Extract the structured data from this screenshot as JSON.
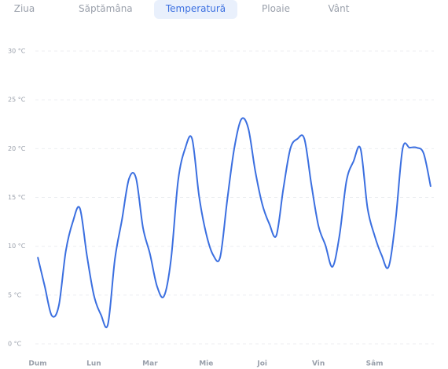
{
  "tabs": [
    "Ziua",
    "Săptămâna",
    "Temperatură",
    "Ploaie",
    "Vânt"
  ],
  "chart_data": {
    "type": "line",
    "x": [
      0,
      3,
      6,
      9,
      12,
      15,
      18,
      21,
      24,
      27,
      30,
      33,
      36,
      39,
      42,
      45,
      48,
      51,
      54,
      57,
      60,
      63,
      66,
      69,
      72,
      75,
      78,
      81,
      84,
      87,
      90,
      93,
      96,
      99,
      102,
      105,
      108,
      111,
      114,
      117,
      120,
      123,
      126,
      129,
      132,
      135,
      138,
      141,
      144,
      147,
      150,
      153,
      156,
      159,
      162,
      165,
      168
    ],
    "series": [
      {
        "name": "Temperatură",
        "color": "#3b6fe0",
        "values": [
          8.9,
          5.9,
          2.9,
          3.9,
          9.5,
          12.5,
          13.9,
          9.1,
          5,
          3,
          2,
          8.7,
          12.7,
          16.9,
          17,
          11.9,
          9.2,
          5.9,
          4.9,
          8.7,
          16.7,
          20,
          21,
          15.1,
          11.3,
          9.1,
          8.9,
          14.7,
          20,
          23,
          22.1,
          17.7,
          14.3,
          12.3,
          11.1,
          15.9,
          20,
          21,
          21,
          16.3,
          12.1,
          10.1,
          7.9,
          11.1,
          16.7,
          18.7,
          20,
          13.9,
          11.1,
          9.1,
          7.9,
          12.7,
          20,
          20.1,
          20.1,
          19.5,
          16.1
        ]
      }
    ],
    "xlim": [
      0,
      168
    ],
    "xticks": [
      {
        "value": 0,
        "label": "Dum"
      },
      {
        "value": 24,
        "label": "Lun"
      },
      {
        "value": 48,
        "label": "Mar"
      },
      {
        "value": 72,
        "label": "Mie"
      },
      {
        "value": 96,
        "label": "Joi"
      },
      {
        "value": 120,
        "label": "Vin"
      },
      {
        "value": 144,
        "label": "Sâm"
      }
    ],
    "ylim": [
      0,
      30
    ],
    "yticks": [
      {
        "value": 0,
        "label": "0 °C"
      },
      {
        "value": 5,
        "label": "5 °C"
      },
      {
        "value": 10,
        "label": "10 °C"
      },
      {
        "value": 15,
        "label": "15 °C"
      },
      {
        "value": 20,
        "label": "20 °C"
      },
      {
        "value": 25,
        "label": "25 °C"
      },
      {
        "value": 30,
        "label": "30 °C"
      }
    ],
    "grid": true
  }
}
